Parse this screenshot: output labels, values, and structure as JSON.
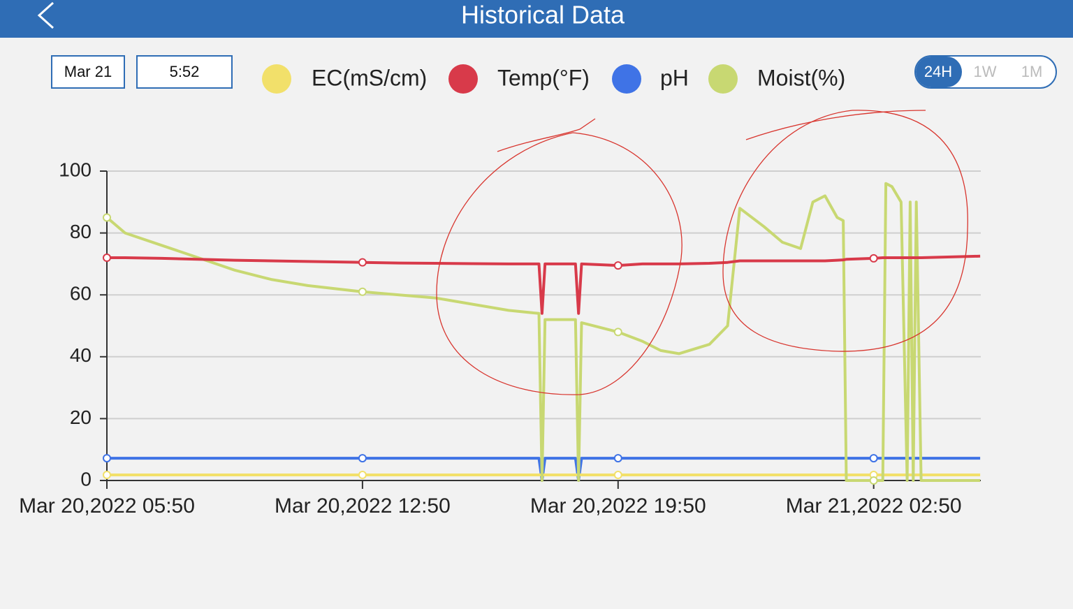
{
  "header": {
    "title": "Historical Data"
  },
  "controls": {
    "date": "Mar 21",
    "time": "5:52",
    "ranges": [
      "24H",
      "1W",
      "1M"
    ],
    "active_range": 0
  },
  "chart_data": {
    "type": "line",
    "x": [
      "2022-03-20T05:50",
      "2022-03-20T06:20",
      "2022-03-20T07:20",
      "2022-03-20T08:20",
      "2022-03-20T09:20",
      "2022-03-20T10:20",
      "2022-03-20T11:20",
      "2022-03-20T12:50",
      "2022-03-20T13:50",
      "2022-03-20T14:50",
      "2022-03-20T15:50",
      "2022-03-20T16:50",
      "2022-03-20T17:40",
      "2022-03-20T17:45",
      "2022-03-20T17:50",
      "2022-03-20T18:40",
      "2022-03-20T18:45",
      "2022-03-20T18:50",
      "2022-03-20T19:50",
      "2022-03-20T20:30",
      "2022-03-20T21:00",
      "2022-03-20T21:30",
      "2022-03-20T22:20",
      "2022-03-20T22:50",
      "2022-03-20T23:10",
      "2022-03-20T23:50",
      "2022-03-21T00:20",
      "2022-03-21T00:50",
      "2022-03-21T01:10",
      "2022-03-21T01:30",
      "2022-03-21T01:50",
      "2022-03-21T02:00",
      "2022-03-21T02:05",
      "2022-03-21T02:50",
      "2022-03-21T03:05",
      "2022-03-21T03:10",
      "2022-03-21T03:20",
      "2022-03-21T03:35",
      "2022-03-21T03:45",
      "2022-03-21T03:50",
      "2022-03-21T03:55",
      "2022-03-21T04:00",
      "2022-03-21T04:08",
      "2022-03-21T05:45"
    ],
    "series": [
      {
        "name": "EC(mS/cm)",
        "color": "#f2e06a",
        "values": [
          1.8,
          1.8,
          1.8,
          1.8,
          1.8,
          1.8,
          1.8,
          1.8,
          1.8,
          1.8,
          1.8,
          1.8,
          1.8,
          1.8,
          1.8,
          1.8,
          1.8,
          1.8,
          1.8,
          1.8,
          1.8,
          1.8,
          1.8,
          1.8,
          1.8,
          1.8,
          1.8,
          1.8,
          1.8,
          1.8,
          1.8,
          1.8,
          1.8,
          1.8,
          1.8,
          1.8,
          1.8,
          1.8,
          1.8,
          1.8,
          1.8,
          1.8,
          1.8,
          1.8
        ]
      },
      {
        "name": "Temp(°F)",
        "color": "#d83a4a",
        "values": [
          72,
          72,
          71.8,
          71.5,
          71.2,
          71,
          70.8,
          70.5,
          70.3,
          70.2,
          70.1,
          70,
          70,
          54,
          70,
          70,
          54,
          70,
          69.5,
          70,
          70,
          70,
          70.2,
          70.5,
          71,
          71,
          71,
          71,
          71,
          71,
          71.2,
          71.3,
          71.5,
          71.8,
          72,
          72,
          72,
          72,
          72,
          72,
          72,
          72,
          72,
          72.5
        ]
      },
      {
        "name": "pH",
        "color": "#3f73e6",
        "values": [
          7.2,
          7.2,
          7.2,
          7.2,
          7.2,
          7.2,
          7.2,
          7.2,
          7.2,
          7.2,
          7.2,
          7.2,
          7.2,
          0,
          7.2,
          7.2,
          0,
          7.2,
          7.2,
          7.2,
          7.2,
          7.2,
          7.2,
          7.2,
          7.2,
          7.2,
          7.2,
          7.2,
          7.2,
          7.2,
          7.2,
          7.2,
          7.2,
          7.2,
          7.2,
          7.2,
          7.2,
          7.2,
          7.2,
          7.2,
          7.2,
          7.2,
          7.2,
          7.2
        ]
      },
      {
        "name": "Moist(%)",
        "color": "#c8d872",
        "values": [
          85,
          80,
          76,
          72,
          68,
          65,
          63,
          61,
          60,
          59,
          57,
          55,
          54,
          0,
          52,
          52,
          0,
          51,
          48,
          45,
          42,
          41,
          44,
          50,
          88,
          82,
          77,
          75,
          90,
          92,
          85,
          84,
          0,
          0,
          0,
          96,
          95,
          90,
          0,
          90,
          0,
          90,
          0,
          0
        ]
      }
    ],
    "xlim": [
      "2022-03-20T05:50",
      "2022-03-21T05:46"
    ],
    "xticks": [
      {
        "value": "2022-03-20T05:50",
        "label": "Mar 20,2022 05:50"
      },
      {
        "value": "2022-03-20T12:50",
        "label": "Mar 20,2022 12:50"
      },
      {
        "value": "2022-03-20T19:50",
        "label": "Mar 20,2022 19:50"
      },
      {
        "value": "2022-03-21T02:50",
        "label": "Mar 21,2022 02:50"
      }
    ],
    "ylim": [
      0,
      100
    ],
    "yticks": [
      0,
      20,
      40,
      60,
      80,
      100
    ],
    "grid": true
  }
}
